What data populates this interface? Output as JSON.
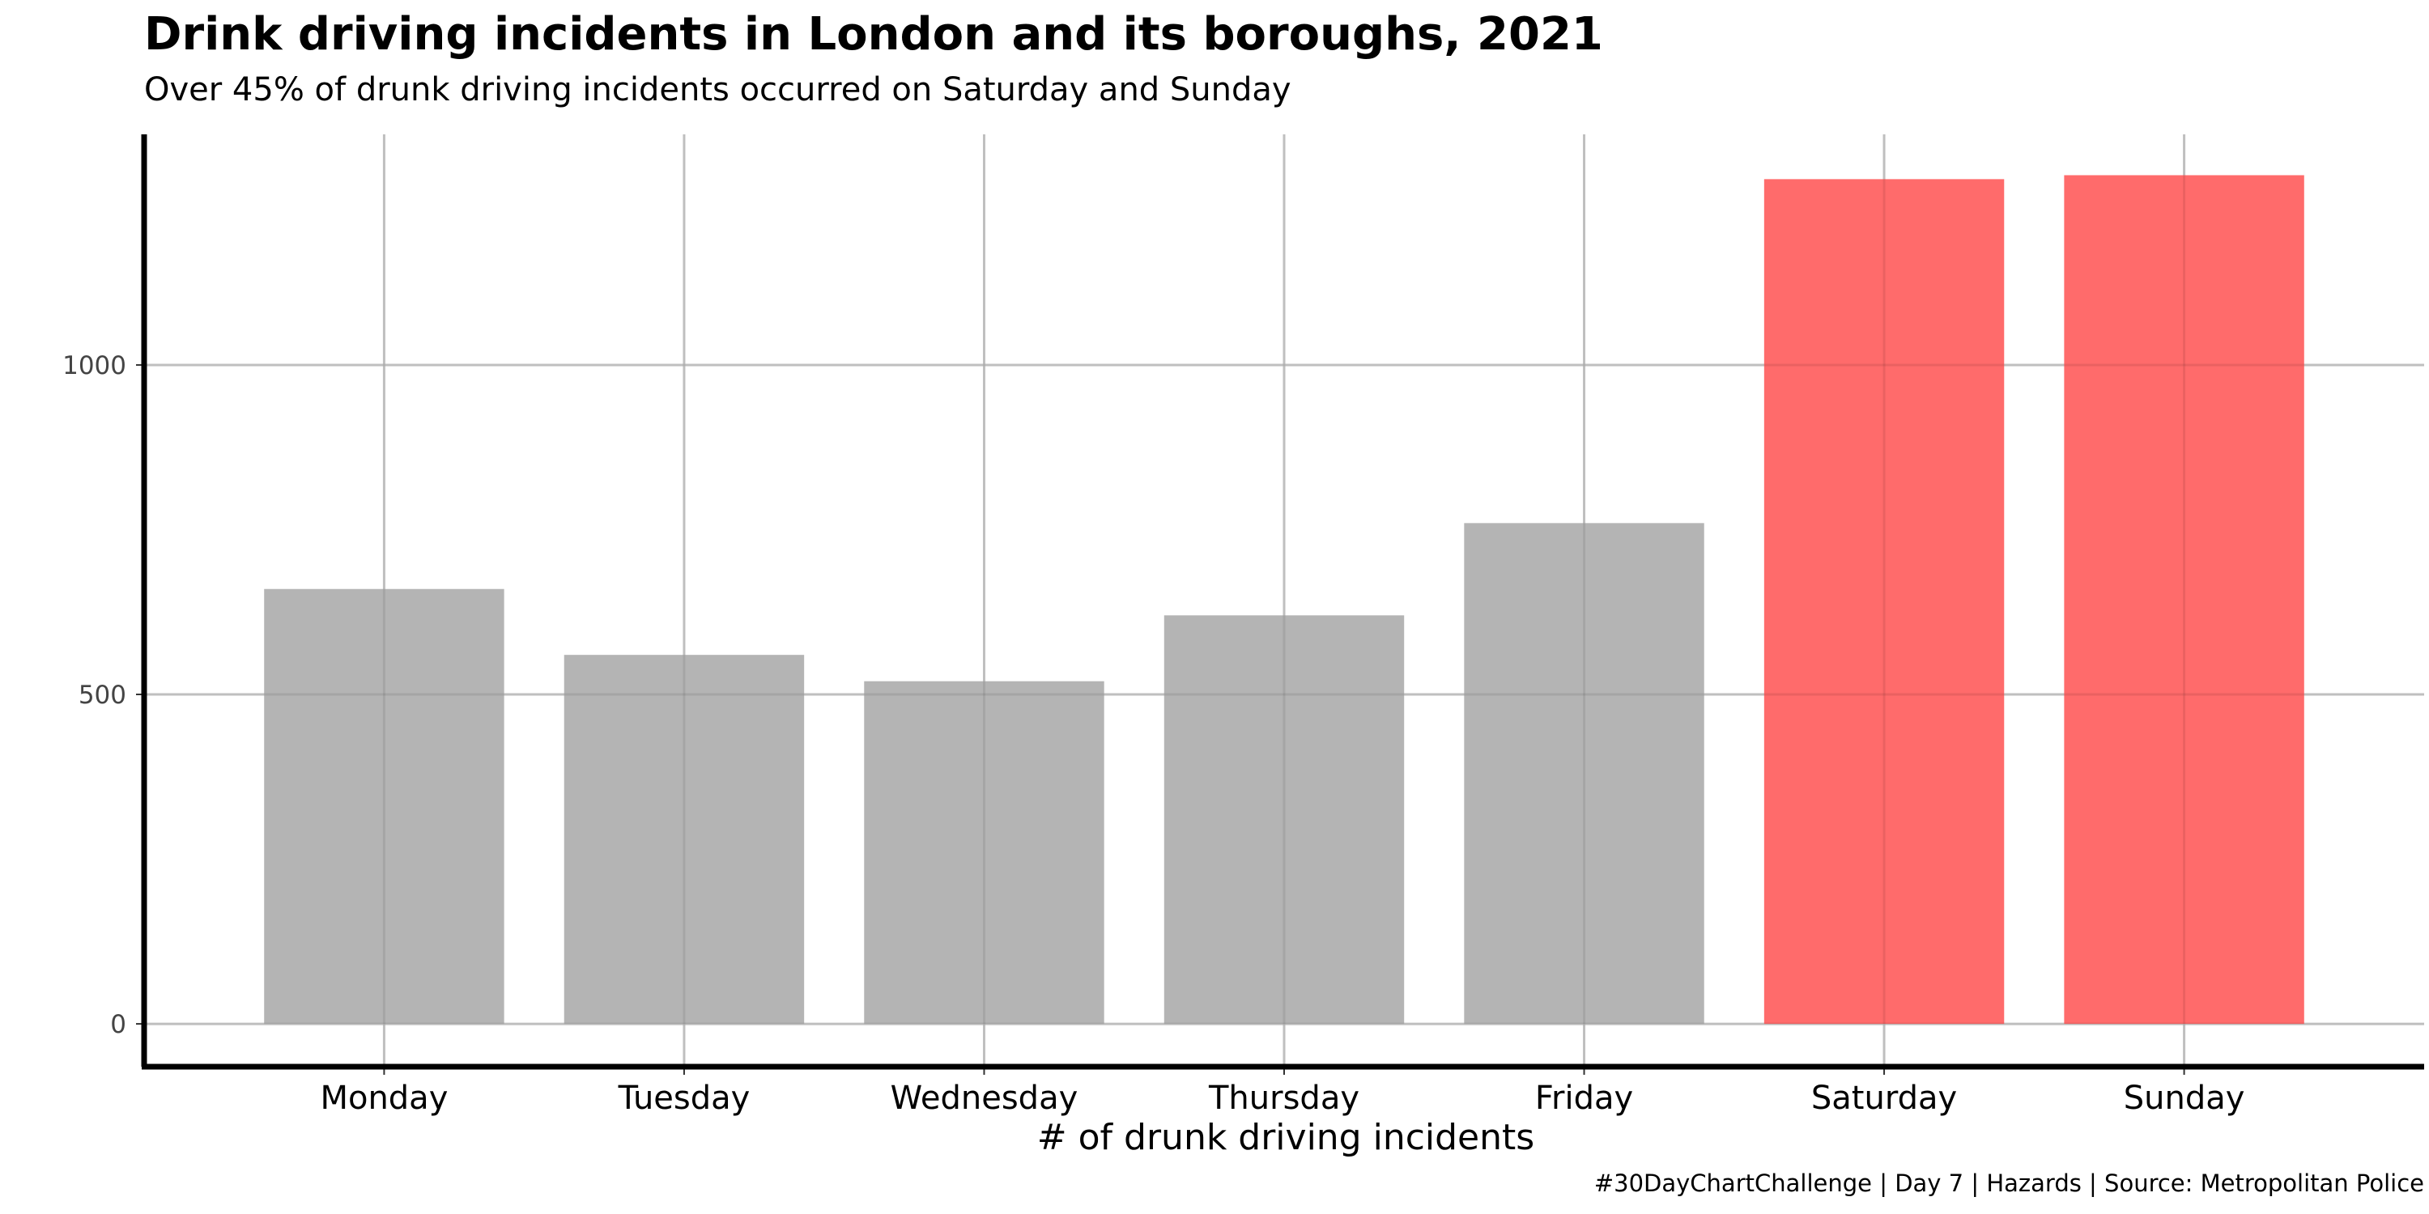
{
  "chart_data": {
    "type": "bar",
    "title": "Drink driving incidents in London and its boroughs, 2021",
    "subtitle": "Over 45% of drunk driving incidents occurred on Saturday and Sunday",
    "caption": "#30DayChartChallenge | Day 7 | Hazards | Source: Metropolitan Police",
    "xlabel": "# of drunk driving incidents",
    "ylabel": "",
    "categories": [
      "Monday",
      "Tuesday",
      "Wednesday",
      "Thursday",
      "Friday",
      "Saturday",
      "Sunday"
    ],
    "values": [
      660,
      560,
      520,
      620,
      760,
      1282,
      1288
    ],
    "highlight": [
      false,
      false,
      false,
      false,
      false,
      true,
      true
    ],
    "ylim": [
      -65,
      1350
    ],
    "yticks": [
      0,
      500,
      1000
    ],
    "grid": true,
    "legend": "none",
    "colors": {
      "default_bar": "#b2b2b2",
      "highlight_bar": "#ff6666",
      "grid": "#d0d0d0",
      "axis": "#000000"
    }
  }
}
